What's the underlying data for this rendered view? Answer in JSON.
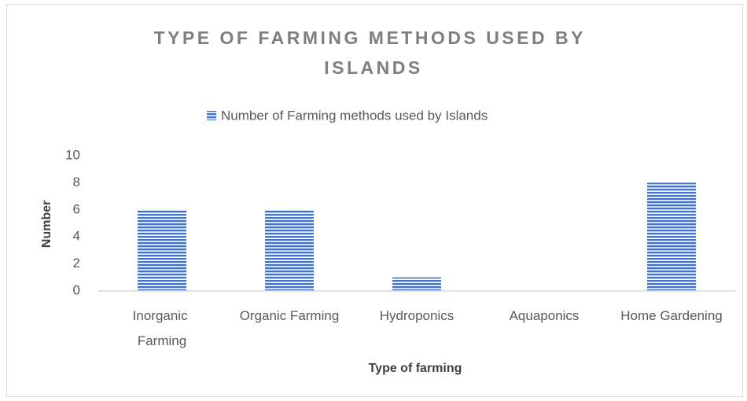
{
  "chart_data": {
    "type": "bar",
    "title": "TYPE OF FARMING METHODS USED BY ISLANDS",
    "x_label": "Type of farming",
    "y_label": "Number",
    "categories": [
      "Inorganic Farming",
      "Organic Farming",
      "Hydroponics",
      "Aquaponics",
      "Home Gardening"
    ],
    "series": [
      {
        "name": "Number of Farming methods used by Islands",
        "color": "#4472c4",
        "values": [
          6,
          6,
          1,
          0,
          8
        ]
      }
    ],
    "ylim": [
      0,
      10
    ],
    "yticks": [
      0,
      2,
      4,
      6,
      8,
      10
    ],
    "grid": false,
    "legend": "top"
  }
}
